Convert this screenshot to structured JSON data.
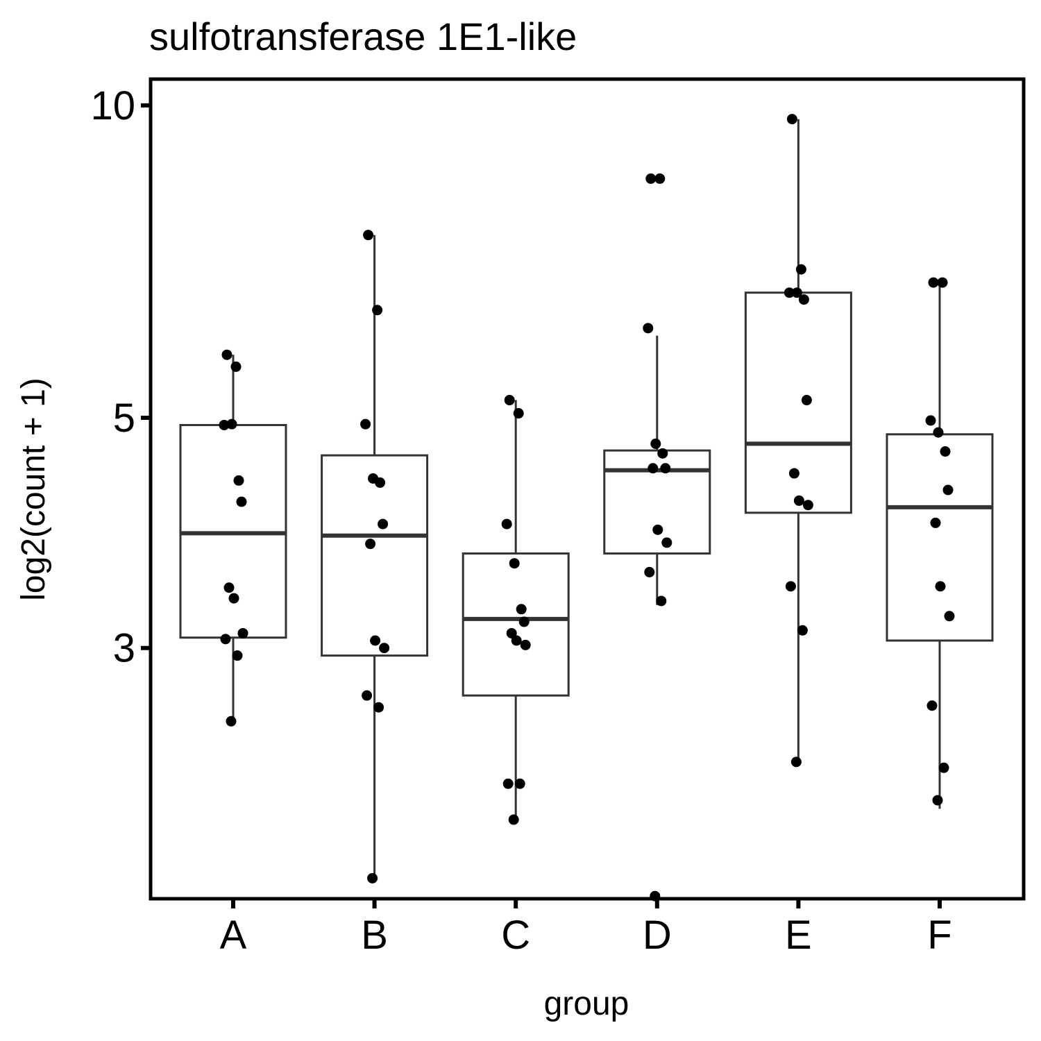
{
  "chart_data": {
    "type": "boxplot",
    "title": "sulfotransferase 1E1-like",
    "xlabel": "group",
    "ylabel": "log2(count + 1)",
    "y_scale": "log",
    "yticks": [
      3,
      5,
      10
    ],
    "ylim": [
      1.72,
      10.6
    ],
    "grid": false,
    "legend": "none",
    "categories": [
      "A",
      "B",
      "C",
      "D",
      "E",
      "F"
    ],
    "boxes": [
      {
        "group": "A",
        "whisker_low": 2.55,
        "q1": 3.07,
        "median": 3.87,
        "q3": 4.92,
        "whisker_high": 5.75
      },
      {
        "group": "B",
        "whisker_low": 1.8,
        "q1": 2.95,
        "median": 3.85,
        "q3": 4.6,
        "whisker_high": 7.5
      },
      {
        "group": "C",
        "whisker_low": 2.05,
        "q1": 2.7,
        "median": 3.2,
        "q3": 3.7,
        "whisker_high": 5.2
      },
      {
        "group": "D",
        "whisker_low": 3.3,
        "q1": 3.7,
        "median": 4.45,
        "q3": 4.65,
        "whisker_high": 6.0
      },
      {
        "group": "E",
        "whisker_low": 2.33,
        "q1": 4.05,
        "median": 4.72,
        "q3": 6.6,
        "whisker_high": 9.7
      },
      {
        "group": "F",
        "whisker_low": 2.1,
        "q1": 3.05,
        "median": 4.1,
        "q3": 4.82,
        "whisker_high": 6.75
      }
    ],
    "points": [
      {
        "group": "A",
        "values": [
          5.75,
          5.6,
          4.92,
          4.93,
          4.35,
          4.15,
          3.43,
          3.35,
          3.1,
          3.06,
          2.95,
          2.55
        ]
      },
      {
        "group": "B",
        "values": [
          7.5,
          6.35,
          4.93,
          4.37,
          4.33,
          3.95,
          3.78,
          3.05,
          3.0,
          2.7,
          2.63,
          1.8
        ]
      },
      {
        "group": "C",
        "values": [
          5.2,
          5.05,
          3.95,
          3.62,
          3.27,
          3.18,
          3.1,
          3.05,
          3.02,
          2.22,
          2.22,
          2.05
        ]
      },
      {
        "group": "D",
        "values": [
          8.5,
          8.5,
          6.1,
          4.72,
          4.62,
          4.47,
          4.47,
          3.9,
          3.79,
          3.55,
          3.33,
          1.73
        ]
      },
      {
        "group": "E",
        "values": [
          9.7,
          6.95,
          6.6,
          6.6,
          6.5,
          5.2,
          4.42,
          4.16,
          4.12,
          3.44,
          3.12,
          2.33
        ]
      },
      {
        "group": "F",
        "values": [
          6.75,
          6.75,
          4.97,
          4.84,
          4.64,
          4.26,
          3.96,
          3.44,
          3.22,
          2.64,
          2.3,
          2.14
        ]
      }
    ]
  }
}
